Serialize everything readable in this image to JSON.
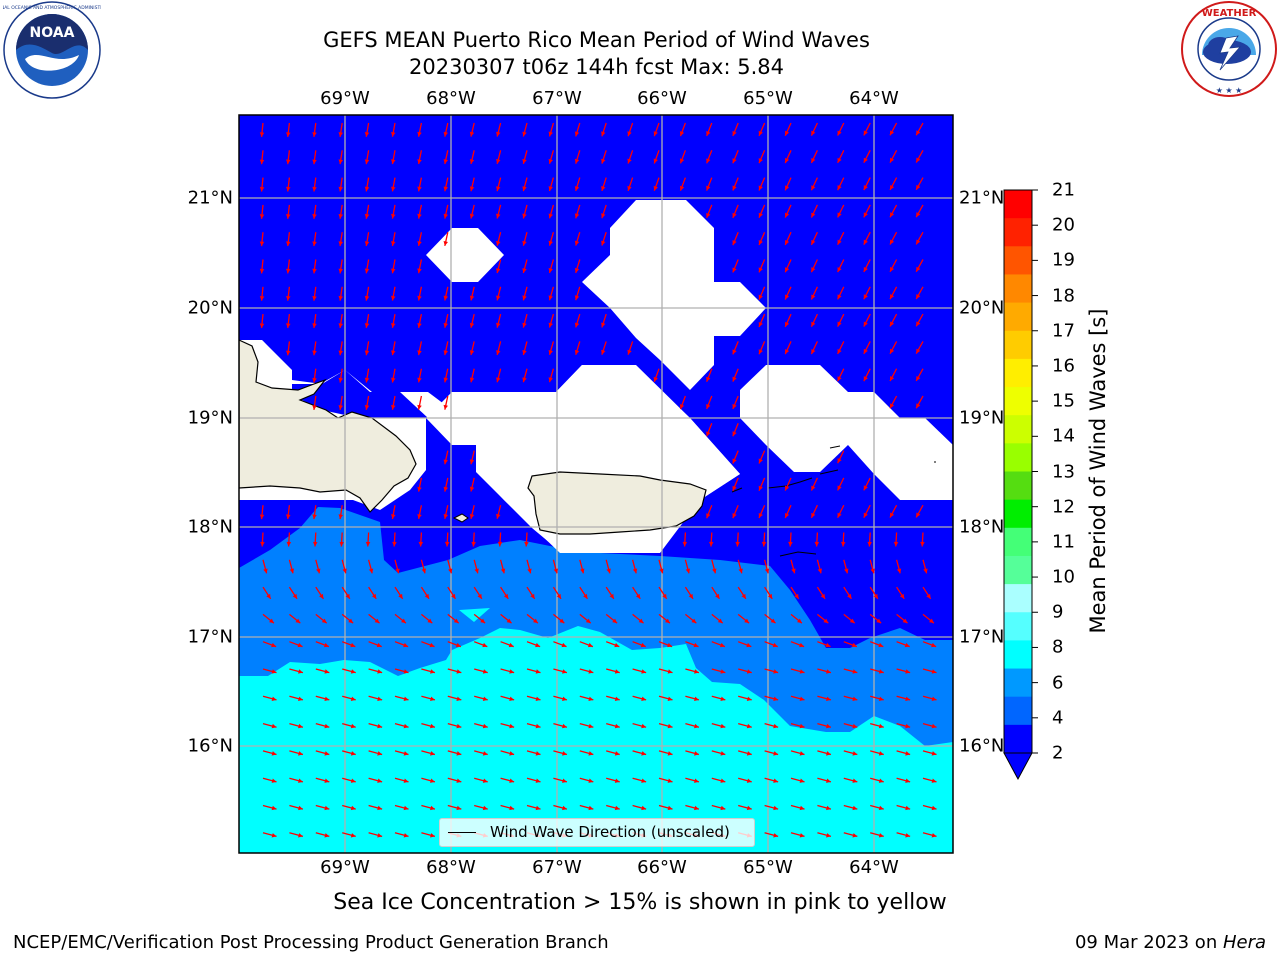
{
  "title_line1": "GEFS MEAN Puerto Rico Mean Period of Wind Waves",
  "title_line2": "20230307 t06z 144h fcst   Max: 5.84",
  "lon_labels": [
    "69°W",
    "68°W",
    "67°W",
    "66°W",
    "65°W",
    "64°W"
  ],
  "lat_labels": [
    "21°N",
    "20°N",
    "19°N",
    "18°N",
    "17°N",
    "16°N"
  ],
  "colorbar": {
    "label": "Mean Period of Wind Waves [s]",
    "ticks": [
      "21",
      "20",
      "19",
      "18",
      "17",
      "16",
      "15",
      "14",
      "13",
      "12",
      "11",
      "10",
      "9",
      "8",
      "6",
      "4",
      "2"
    ],
    "colors": [
      "#ff0000",
      "#ff2200",
      "#ff5500",
      "#ff8800",
      "#ffaa00",
      "#ffcc00",
      "#ffee00",
      "#eeff00",
      "#ccff00",
      "#99ff00",
      "#55dd11",
      "#00ee00",
      "#44ff77",
      "#55ff99",
      "#aaffff",
      "#55ffff",
      "#00ffff",
      "#0099ff",
      "#0066ff",
      "#0000ff"
    ]
  },
  "legend_text": "Wind Wave Direction (unscaled)",
  "caption": "Sea Ice Concentration > 15% is shown in pink to yellow",
  "footer_left": "NCEP/EMC/Verification Post Processing Product Generation Branch",
  "footer_right_date": "09 Mar 2023 on ",
  "footer_right_host": "Hera",
  "colors": {
    "deep_blue": "#0000ff",
    "mid_blue": "#0080ff",
    "cyan": "#00ffff",
    "land": "#efedde",
    "arrow": "#ff0000",
    "grid": "#b0b0b0"
  },
  "icons": [
    "noaa-logo",
    "nws-logo"
  ]
}
